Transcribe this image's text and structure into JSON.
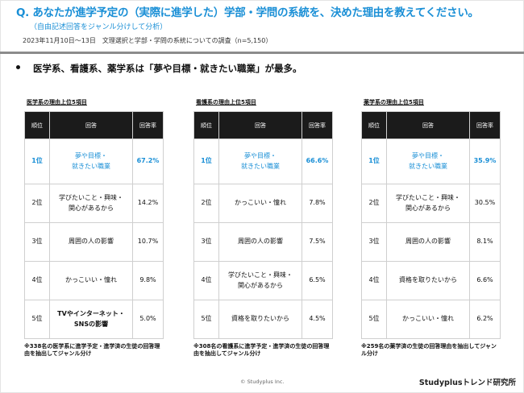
{
  "header": {
    "question": "Q. あなたが進学予定の（実際に進学した）学部・学問の系統を、決めた理由を教えてください。",
    "question_note": "（自由記述回答をジャンル分けして分析）",
    "survey": "2023年11月10日～13日　文理選択と学部・学問の系統についての調査（n=5,150）"
  },
  "summary": "医学系、看護系、薬学系は「夢や目標・就きたい職業」が最多。",
  "columns": {
    "rank": "順位",
    "answer": "回答",
    "rate": "回答率"
  },
  "panels": [
    {
      "title": "医学系の理由上位5項目",
      "rows": [
        {
          "rank": "1位",
          "answer_l1": "夢や目標・",
          "answer_l2": "就きたい職業",
          "rate": "67.2%"
        },
        {
          "rank": "2位",
          "answer_l1": "学びたいこと・興味・",
          "answer_l2": "関心があるから",
          "rate": "14.2%"
        },
        {
          "rank": "3位",
          "answer_l1": "周囲の人の影響",
          "answer_l2": "",
          "rate": "10.7%"
        },
        {
          "rank": "4位",
          "answer_l1": "かっこいい・憧れ",
          "answer_l2": "",
          "rate": "9.8%"
        },
        {
          "rank": "5位",
          "answer_l1": "TVやインターネット・",
          "answer_l2": "SNSの影響",
          "rate": "5.0%"
        }
      ],
      "note": "※338名の医学系に進学予定・進学済の生徒の回答理由を抽出してジャンル分け"
    },
    {
      "title": "看護系の理由上位5項目",
      "rows": [
        {
          "rank": "1位",
          "answer_l1": "夢や目標・",
          "answer_l2": "就きたい職業",
          "rate": "66.6%"
        },
        {
          "rank": "2位",
          "answer_l1": "かっこいい・憧れ",
          "answer_l2": "",
          "rate": "7.8%"
        },
        {
          "rank": "3位",
          "answer_l1": "周囲の人の影響",
          "answer_l2": "",
          "rate": "7.5%"
        },
        {
          "rank": "4位",
          "answer_l1": "学びたいこと・興味・",
          "answer_l2": "関心があるから",
          "rate": "6.5%"
        },
        {
          "rank": "5位",
          "answer_l1": "資格を取りたいから",
          "answer_l2": "",
          "rate": "4.5%"
        }
      ],
      "note": "※308名の看護系に進学予定・進学済の生徒の回答理由を抽出してジャンル分け"
    },
    {
      "title": "薬学系の理由上位5項目",
      "rows": [
        {
          "rank": "1位",
          "answer_l1": "夢や目標・",
          "answer_l2": "就きたい職業",
          "rate": "35.9%"
        },
        {
          "rank": "2位",
          "answer_l1": "学びたいこと・興味・",
          "answer_l2": "関心があるから",
          "rate": "30.5%"
        },
        {
          "rank": "3位",
          "answer_l1": "周囲の人の影響",
          "answer_l2": "",
          "rate": "8.1%"
        },
        {
          "rank": "4位",
          "answer_l1": "資格を取りたいから",
          "answer_l2": "",
          "rate": "6.6%"
        },
        {
          "rank": "5位",
          "answer_l1": "かっこいい・憧れ",
          "answer_l2": "",
          "rate": "6.2%"
        }
      ],
      "note": "※259名の薬学済の生徒の回答理由を抽出してジャンル分け"
    }
  ],
  "footer": {
    "copyright": "© Studyplus Inc.",
    "brand": "Studyplusトレンド研究所"
  },
  "colors": {
    "accent": "#1a8fd6",
    "header_bg": "#1b1b1b",
    "rule": "#8c8c8c"
  }
}
